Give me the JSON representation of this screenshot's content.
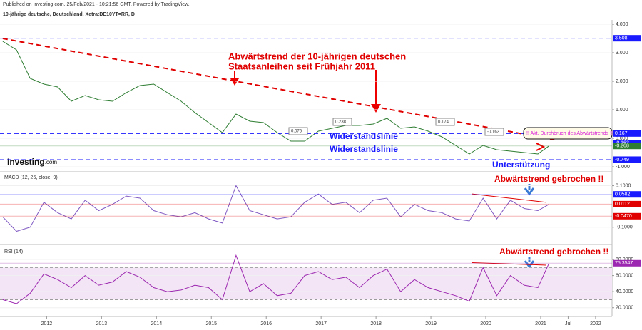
{
  "header": "Published on Investing.com, 25/Feb/2021 - 10:21:56 GMT, Powered by TradingView.",
  "logo": {
    "name": "Investing",
    "suffix": ".com"
  },
  "chart_data": [
    {
      "type": "line",
      "title": "10-jährige deutsche, Deutschland, Xetra:DE10YT=RR, D",
      "x": [
        2011.2,
        2011.45,
        2011.7,
        2011.95,
        2012.2,
        2012.45,
        2012.7,
        2012.95,
        2013.2,
        2013.45,
        2013.7,
        2013.95,
        2014.2,
        2014.45,
        2014.7,
        2014.95,
        2015.2,
        2015.45,
        2015.7,
        2015.95,
        2016.2,
        2016.45,
        2016.7,
        2016.95,
        2017.2,
        2017.45,
        2017.7,
        2017.95,
        2018.2,
        2018.45,
        2018.7,
        2018.95,
        2019.2,
        2019.45,
        2019.7,
        2019.95,
        2020.2,
        2020.45,
        2020.7,
        2020.95,
        2021.15
      ],
      "series": [
        {
          "color": "#2e7d32",
          "values": [
            3.4,
            3.1,
            2.1,
            1.9,
            1.8,
            1.3,
            1.5,
            1.35,
            1.3,
            1.6,
            1.85,
            1.9,
            1.6,
            1.3,
            0.9,
            0.55,
            0.2,
            0.85,
            0.6,
            0.55,
            0.2,
            -0.1,
            -0.1,
            0.25,
            0.35,
            0.45,
            0.45,
            0.5,
            0.7,
            0.35,
            0.4,
            0.25,
            0.05,
            -0.25,
            -0.55,
            -0.25,
            -0.4,
            -0.45,
            -0.5,
            -0.55,
            -0.27
          ]
        }
      ],
      "xlim": [
        2011.15,
        2022.3
      ],
      "ylim": [
        -1.15,
        4.1
      ],
      "yticks": [
        {
          "value": 4,
          "label": "4.000"
        },
        {
          "value": 3,
          "label": "3.000"
        },
        {
          "value": 2,
          "label": "2.000"
        },
        {
          "value": 1,
          "label": "1.000"
        },
        {
          "value": 0,
          "label": "0.000"
        },
        {
          "value": -1,
          "label": "-1.000"
        }
      ],
      "levels": [
        {
          "value": 3.508,
          "color": "#1a1aff",
          "dashed": true
        },
        {
          "value": 0.167,
          "color": "#1a1aff",
          "dashed": true
        },
        {
          "value": -0.163,
          "color": "#1a1aff",
          "dashed": true
        },
        {
          "value": -0.268,
          "color": "#2e7d32",
          "dashed": false
        },
        {
          "value": -0.749,
          "color": "#1a1aff",
          "dashed": true
        }
      ],
      "trendline": {
        "color": "#e00000",
        "x": [
          2011.2,
          2021.25
        ],
        "y": [
          3.5,
          -0.05
        ]
      },
      "annotations": [
        "Abwärtstrend der 10-jährigen deutschen",
        "Staatsanleihen seit Frühjahr 2011",
        "Widerstandslinie",
        "Widerstandslinie",
        "Unterstützung",
        "!! Akt. Durchbruch des Abwärtstrends !!",
        "0.076",
        "0.238",
        "0.174",
        "-0.163"
      ]
    },
    {
      "type": "line",
      "title": "MACD (12, 26, close, 9)",
      "x": [
        2011.2,
        2011.45,
        2011.7,
        2011.95,
        2012.2,
        2012.45,
        2012.7,
        2012.95,
        2013.2,
        2013.45,
        2013.7,
        2013.95,
        2014.2,
        2014.45,
        2014.7,
        2014.95,
        2015.2,
        2015.45,
        2015.7,
        2015.95,
        2016.2,
        2016.45,
        2016.7,
        2016.95,
        2017.2,
        2017.45,
        2017.7,
        2017.95,
        2018.2,
        2018.45,
        2018.7,
        2018.95,
        2019.2,
        2019.45,
        2019.7,
        2019.95,
        2020.2,
        2020.45,
        2020.7,
        2020.95,
        2021.15
      ],
      "series": [
        {
          "color": "#7e57c2",
          "values": [
            -0.05,
            -0.12,
            -0.1,
            0.02,
            -0.03,
            -0.06,
            0.03,
            -0.02,
            0.01,
            0.05,
            0.04,
            -0.02,
            -0.04,
            -0.05,
            -0.03,
            -0.06,
            -0.08,
            0.1,
            -0.02,
            -0.04,
            -0.06,
            -0.05,
            0.02,
            0.06,
            0.01,
            0.02,
            -0.03,
            0.03,
            0.04,
            -0.05,
            0.01,
            -0.02,
            -0.03,
            -0.06,
            -0.07,
            0.04,
            -0.06,
            0.03,
            -0.01,
            -0.02,
            0.01
          ]
        }
      ],
      "xlim": [
        2011.15,
        2022.3
      ],
      "ylim": [
        -0.18,
        0.15
      ],
      "yticks": [
        {
          "value": 0.1,
          "label": "0.1000"
        },
        {
          "value": -0.1,
          "label": "-0.1000"
        }
      ],
      "levels": [
        {
          "value": 0.0582,
          "color": "#1a1aff",
          "dashed": false
        },
        {
          "value": -0.047,
          "label": "-0.0470",
          "color": "#e00000",
          "dashed": false
        },
        {
          "value": 0.0112,
          "color": "#e00000",
          "dashed": false
        }
      ],
      "trendline": {
        "color": "#e00000",
        "x": [
          2019.75,
          2021.1
        ],
        "y": [
          0.06,
          0.02
        ]
      },
      "annotations": [
        "Abwärtstrend gebrochen !!"
      ]
    },
    {
      "type": "line",
      "title": "RSI (14)",
      "x": [
        2011.2,
        2011.45,
        2011.7,
        2011.95,
        2012.2,
        2012.45,
        2012.7,
        2012.95,
        2013.2,
        2013.45,
        2013.7,
        2013.95,
        2014.2,
        2014.45,
        2014.7,
        2014.95,
        2015.2,
        2015.45,
        2015.7,
        2015.95,
        2016.2,
        2016.45,
        2016.7,
        2016.95,
        2017.2,
        2017.45,
        2017.7,
        2017.95,
        2018.2,
        2018.45,
        2018.7,
        2018.95,
        2019.2,
        2019.45,
        2019.7,
        2019.95,
        2020.2,
        2020.45,
        2020.7,
        2020.95,
        2021.15
      ],
      "series": [
        {
          "color": "#9c27b0",
          "values": [
            30,
            25,
            38,
            62,
            55,
            45,
            60,
            48,
            52,
            65,
            58,
            45,
            40,
            42,
            48,
            45,
            30,
            85,
            40,
            50,
            35,
            38,
            60,
            65,
            55,
            58,
            45,
            60,
            68,
            40,
            55,
            45,
            40,
            35,
            28,
            70,
            35,
            60,
            48,
            45,
            75
          ]
        }
      ],
      "xlim": [
        2011.15,
        2022.3
      ],
      "ylim": [
        10,
        96
      ],
      "yticks": [
        {
          "value": 80,
          "label": "80.0000"
        },
        {
          "value": 60,
          "label": "60.0000"
        },
        {
          "value": 40,
          "label": "40.0000"
        },
        {
          "value": 20,
          "label": "20.0000"
        }
      ],
      "band": [
        30,
        70
      ],
      "levels": [
        {
          "value": 75.3547,
          "color": "#9c27b0",
          "dashed": false
        }
      ],
      "trendline": {
        "color": "#e00000",
        "x": [
          2019.75,
          2021.1
        ],
        "y": [
          76,
          73
        ]
      },
      "annotations": [
        "Abwärtstrend gebrochen !!"
      ],
      "xticks": [
        {
          "value": 2012,
          "label": "2012"
        },
        {
          "value": 2013,
          "label": "2013"
        },
        {
          "value": 2014,
          "label": "2014"
        },
        {
          "value": 2015,
          "label": "2015"
        },
        {
          "value": 2016,
          "label": "2016"
        },
        {
          "value": 2017,
          "label": "2017"
        },
        {
          "value": 2018,
          "label": "2018"
        },
        {
          "value": 2019,
          "label": "2019"
        },
        {
          "value": 2020,
          "label": "2020"
        },
        {
          "value": 2021,
          "label": "2021"
        },
        {
          "value": 2021.5,
          "label": "Jul"
        },
        {
          "value": 2022,
          "label": "2022"
        }
      ]
    }
  ]
}
